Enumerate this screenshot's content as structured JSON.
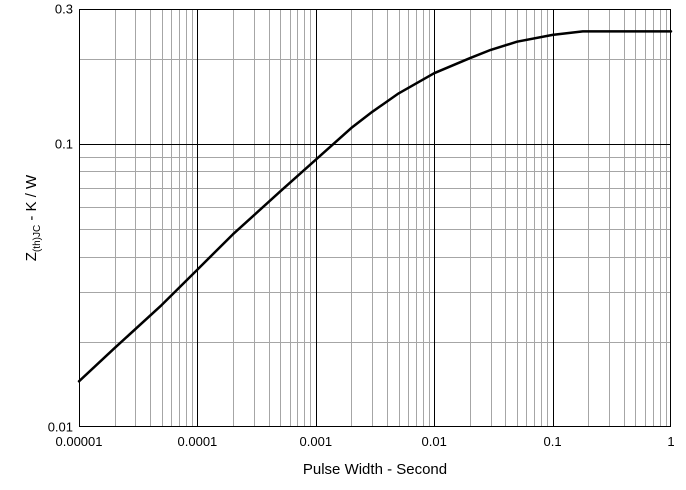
{
  "chart_data": {
    "type": "line",
    "title": "",
    "xlabel": "Pulse Width - Second",
    "ylabel": {
      "main": "Z",
      "sub": "(th)JC",
      "rest": " - K / W"
    },
    "x_scale": "log",
    "y_scale": "log",
    "xlim": [
      1e-05,
      1
    ],
    "ylim": [
      0.01,
      0.3
    ],
    "x_ticks": [
      {
        "value": 1e-05,
        "label": "0.00001"
      },
      {
        "value": 0.0001,
        "label": "0.0001"
      },
      {
        "value": 0.001,
        "label": "0.001"
      },
      {
        "value": 0.01,
        "label": "0.01"
      },
      {
        "value": 0.1,
        "label": "0.1"
      },
      {
        "value": 1,
        "label": "1"
      }
    ],
    "y_ticks": [
      {
        "value": 0.01,
        "label": "0.01"
      },
      {
        "value": 0.1,
        "label": "0.1"
      },
      {
        "value": 0.3,
        "label": "0.3"
      }
    ],
    "grid": true,
    "line_color": "#000000",
    "series": [
      {
        "x": [
          1e-05,
          2e-05,
          5e-05,
          0.0001,
          0.0002,
          0.0005,
          0.001,
          0.002,
          0.003,
          0.005,
          0.01,
          0.02,
          0.03,
          0.05,
          0.1,
          0.18,
          0.3,
          0.5,
          1
        ],
        "y": [
          0.0145,
          0.019,
          0.027,
          0.036,
          0.048,
          0.068,
          0.088,
          0.114,
          0.13,
          0.151,
          0.178,
          0.201,
          0.215,
          0.23,
          0.243,
          0.25,
          0.25,
          0.25,
          0.25
        ]
      }
    ]
  }
}
